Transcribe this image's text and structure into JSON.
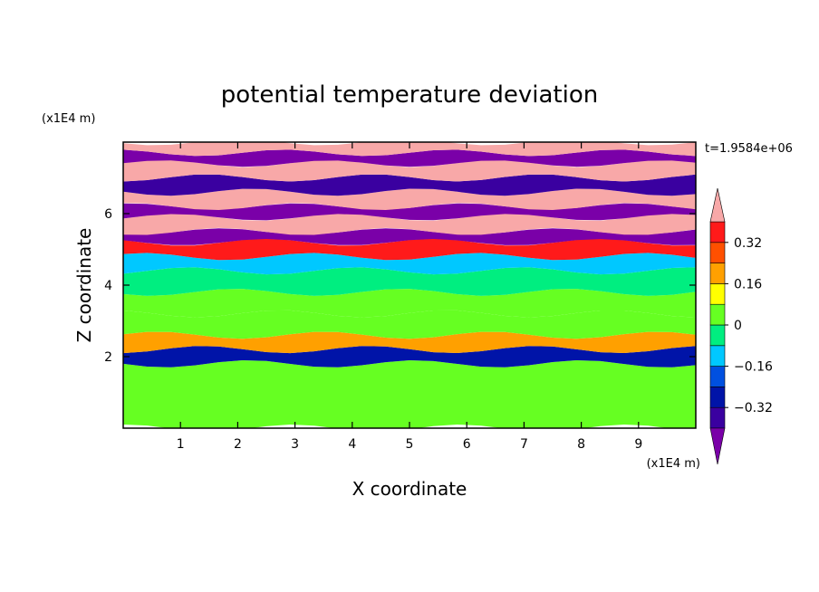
{
  "chart_data": {
    "type": "heatmap",
    "title": "potential temperature deviation",
    "xlabel": "X coordinate",
    "ylabel": "Z coordinate",
    "x_unit": "(x1E4 m)",
    "y_unit": "(x1E4 m)",
    "time_label": "t=1.9584e+06",
    "xlim": [
      0,
      10
    ],
    "ylim": [
      0,
      8
    ],
    "x_ticks": [
      "1",
      "2",
      "3",
      "4",
      "5",
      "6",
      "7",
      "8",
      "9"
    ],
    "y_ticks": [
      "2",
      "4",
      "6"
    ],
    "colorbar": {
      "levels": [
        -0.48,
        -0.4,
        -0.32,
        -0.24,
        -0.16,
        -0.08,
        0,
        0.08,
        0.16,
        0.24,
        0.32,
        0.4,
        0.48
      ],
      "tick_labels": [
        "0.32",
        "0.16",
        "0",
        "-0.16",
        "-0.32"
      ],
      "colors": [
        "#7a00a8",
        "#3a00a0",
        "#0014a8",
        "#0050e0",
        "#00c8ff",
        "#00ee80",
        "#66ff22",
        "#ffff00",
        "#ffa000",
        "#ff5000",
        "#ff1a1a",
        "#f8a8a8"
      ],
      "extend": "both"
    },
    "layers": [
      {
        "z_bottom": 0.0,
        "z_top": 1.8,
        "value": 0.04
      },
      {
        "z_bottom": 1.8,
        "z_top": 2.2,
        "value": -0.28
      },
      {
        "z_bottom": 2.2,
        "z_top": 2.6,
        "value": 0.18
      },
      {
        "z_bottom": 2.6,
        "z_top": 3.2,
        "value": 0.0
      },
      {
        "z_bottom": 3.2,
        "z_top": 3.8,
        "value": 0.06
      },
      {
        "z_bottom": 3.8,
        "z_top": 4.4,
        "value": -0.02
      },
      {
        "z_bottom": 4.4,
        "z_top": 4.8,
        "value": -0.12
      },
      {
        "z_bottom": 4.8,
        "z_top": 5.2,
        "value": 0.36
      },
      {
        "z_bottom": 5.2,
        "z_top": 5.5,
        "value": -0.42
      },
      {
        "z_bottom": 5.5,
        "z_top": 5.9,
        "value": 0.44
      },
      {
        "z_bottom": 5.9,
        "z_top": 6.2,
        "value": -0.44
      },
      {
        "z_bottom": 6.2,
        "z_top": 6.6,
        "value": 0.44
      },
      {
        "z_bottom": 6.6,
        "z_top": 7.0,
        "value": -0.4
      },
      {
        "z_bottom": 7.0,
        "z_top": 7.4,
        "value": 0.44
      },
      {
        "z_bottom": 7.4,
        "z_top": 7.7,
        "value": -0.44
      },
      {
        "z_bottom": 7.7,
        "z_top": 8.0,
        "value": 0.44
      }
    ]
  }
}
